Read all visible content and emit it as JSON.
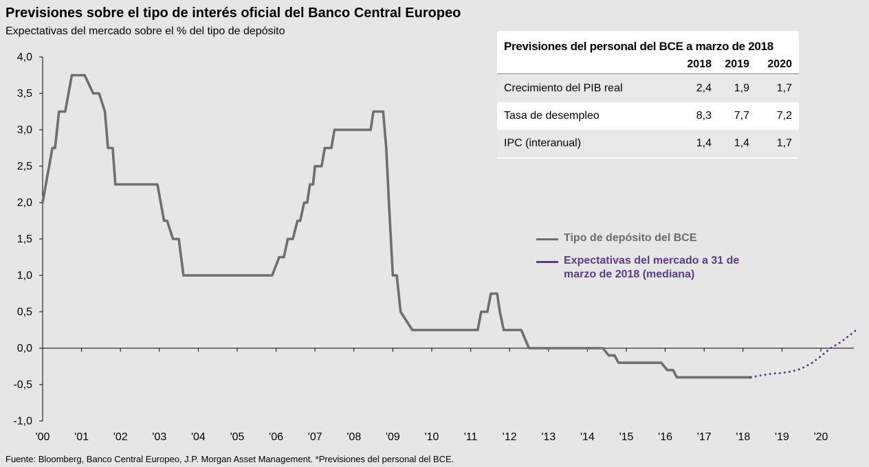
{
  "header": {
    "title": "Previsiones sobre el tipo de interés oficial del Banco Central Europeo",
    "subtitle": "Expectativas del mercado sobre el % del tipo de depósito"
  },
  "footer": {
    "source": "Fuente: Bloomberg, Banco Central Europeo, J.P. Morgan Asset Management. *Previsiones del personal del BCE."
  },
  "colors": {
    "background": "#e6e6e6",
    "deposit_rate": "#6e6e6e",
    "market_expectation": "#5b3a86"
  },
  "legend": {
    "deposit_rate": "Tipo de depósito del BCE",
    "market_expectation": "Expectativas del mercado a 31 de marzo de 2018 (mediana)"
  },
  "forecast_table": {
    "title": "Previsiones del personal del BCE a marzo de 2018",
    "years": [
      "2018",
      "2019",
      "2020"
    ],
    "rows": [
      {
        "label": "Crecimiento del PIB real",
        "values": [
          "2,4",
          "1,9",
          "1,7"
        ]
      },
      {
        "label": "Tasa de desempleo",
        "values": [
          "8,3",
          "7,7",
          "7,2"
        ]
      },
      {
        "label": "IPC (interanual)",
        "values": [
          "1,4",
          "1,4",
          "1,7"
        ]
      }
    ]
  },
  "chart_data": {
    "type": "line",
    "title": "Previsiones sobre el tipo de interés oficial del Banco Central Europeo",
    "ylabel": "Expectativas del mercado sobre el % del tipo de depósito",
    "xlabel": "",
    "xlim": [
      2000.0,
      2020.95
    ],
    "ylim": [
      -1.0,
      4.0
    ],
    "y_ticks": [
      4.0,
      3.5,
      3.0,
      2.5,
      2.0,
      1.5,
      1.0,
      0.5,
      0.0,
      -0.5,
      -1.0
    ],
    "y_tick_labels": [
      "4,0",
      "3,5",
      "3,0",
      "2,5",
      "2,0",
      "1,5",
      "1,0",
      "0,5",
      "0,0",
      "-0,5",
      "-1,0"
    ],
    "x_ticks": [
      2000,
      2001,
      2002,
      2003,
      2004,
      2005,
      2006,
      2007,
      2008,
      2009,
      2010,
      2011,
      2012,
      2013,
      2014,
      2015,
      2016,
      2017,
      2018,
      2019,
      2020
    ],
    "x_tick_labels": [
      "'00",
      "'01",
      "'02",
      "'03",
      "'04",
      "'05",
      "'06",
      "'07",
      "'08",
      "'09",
      "'10",
      "'11",
      "'12",
      "'13",
      "'14",
      "'15",
      "'16",
      "'17",
      "'18",
      "'19",
      "'20"
    ],
    "grid": false,
    "series": [
      {
        "name": "Tipo de depósito del BCE",
        "style": "solid",
        "x": [
          2000.0,
          2000.25,
          2000.32,
          2000.42,
          2000.5,
          2000.58,
          2000.75,
          2000.82,
          2001.0,
          2001.08,
          2001.3,
          2001.45,
          2001.6,
          2001.68,
          2001.8,
          2001.87,
          2002.0,
          2002.5,
          2002.95,
          2003.12,
          2003.2,
          2003.35,
          2003.43,
          2003.5,
          2003.62,
          2004.0,
          2005.0,
          2005.9,
          2006.08,
          2006.2,
          2006.3,
          2006.43,
          2006.55,
          2006.62,
          2006.72,
          2006.8,
          2006.87,
          2006.95,
          2007.0,
          2007.17,
          2007.25,
          2007.42,
          2007.5,
          2007.6,
          2008.0,
          2008.43,
          2008.5,
          2008.6,
          2008.75,
          2008.83,
          2008.9,
          2009.0,
          2009.1,
          2009.2,
          2009.5,
          2010.0,
          2011.0,
          2011.18,
          2011.27,
          2011.43,
          2011.52,
          2011.68,
          2011.75,
          2011.85,
          2012.0,
          2012.3,
          2012.5,
          2013.0,
          2014.0,
          2014.4,
          2014.55,
          2014.7,
          2014.8,
          2015.0,
          2015.5,
          2015.9,
          2016.05,
          2016.12,
          2016.2,
          2016.3,
          2016.5,
          2017.0,
          2017.5,
          2018.0,
          2018.2
        ],
        "values": [
          2.0,
          2.75,
          2.75,
          3.25,
          3.25,
          3.25,
          3.75,
          3.75,
          3.75,
          3.75,
          3.5,
          3.5,
          3.25,
          2.75,
          2.75,
          2.25,
          2.25,
          2.25,
          2.25,
          1.75,
          1.75,
          1.5,
          1.5,
          1.5,
          1.0,
          1.0,
          1.0,
          1.0,
          1.25,
          1.25,
          1.5,
          1.5,
          1.75,
          1.75,
          2.0,
          2.0,
          2.25,
          2.25,
          2.5,
          2.5,
          2.75,
          2.75,
          3.0,
          3.0,
          3.0,
          3.0,
          3.25,
          3.25,
          3.25,
          2.75,
          2.0,
          1.0,
          1.0,
          0.5,
          0.25,
          0.25,
          0.25,
          0.25,
          0.5,
          0.5,
          0.75,
          0.75,
          0.5,
          0.25,
          0.25,
          0.25,
          0.0,
          0.0,
          0.0,
          0.0,
          -0.1,
          -0.1,
          -0.2,
          -0.2,
          -0.2,
          -0.2,
          -0.3,
          -0.3,
          -0.3,
          -0.4,
          -0.4,
          -0.4,
          -0.4,
          -0.4,
          -0.4
        ]
      },
      {
        "name": "Expectativas del mercado a 31 de marzo de 2018 (mediana)",
        "style": "dotted",
        "x": [
          2018.2,
          2018.5,
          2018.75,
          2019.0,
          2019.25,
          2019.5,
          2019.75,
          2020.0,
          2020.25,
          2020.5,
          2020.75,
          2020.95
        ],
        "values": [
          -0.4,
          -0.37,
          -0.35,
          -0.34,
          -0.32,
          -0.28,
          -0.21,
          -0.11,
          0.0,
          0.08,
          0.18,
          0.27
        ]
      }
    ]
  }
}
